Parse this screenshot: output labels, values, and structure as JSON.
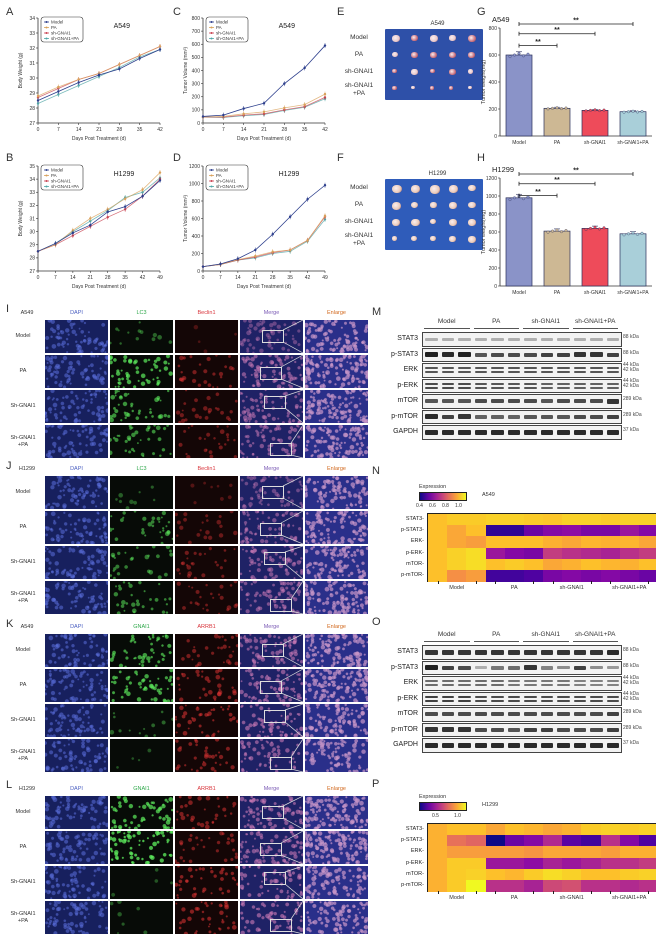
{
  "panel_labels": {
    "A": "A",
    "B": "B",
    "C": "C",
    "D": "D",
    "E": "E",
    "F": "F",
    "G": "G",
    "H": "H",
    "I": "I",
    "J": "J",
    "K": "K",
    "L": "L",
    "M": "M",
    "N": "N",
    "O": "O",
    "P": "P"
  },
  "legend": [
    "Model",
    "PA",
    "sh-GNAI1",
    "sh-GNAI1+PA"
  ],
  "series_colors": {
    "Model": "#2c3e8c",
    "PA": "#d9a15a",
    "sh-GNAI1": "#c8404f",
    "sh-GNAI1+PA": "#4fa6a6"
  },
  "chart_data": [
    {
      "id": "A",
      "type": "line",
      "title": "A549",
      "xlabel": "Days Post Treatment (d)",
      "ylabel": "Body Weight (g)",
      "x": [
        0,
        7,
        14,
        21,
        28,
        35,
        42
      ],
      "ylim": [
        27,
        34
      ],
      "yticks": [
        27,
        28,
        29,
        30,
        31,
        32,
        33,
        34
      ],
      "series": [
        {
          "name": "Model",
          "values": [
            28.5,
            29.1,
            29.7,
            30.2,
            30.6,
            31.3,
            31.9
          ]
        },
        {
          "name": "PA",
          "values": [
            28.8,
            29.4,
            29.9,
            30.3,
            30.9,
            31.5,
            32.1
          ]
        },
        {
          "name": "sh-GNAI1",
          "values": [
            28.7,
            29.3,
            29.9,
            30.3,
            30.9,
            31.5,
            32.1
          ]
        },
        {
          "name": "sh-GNAI1+PA",
          "values": [
            28.3,
            28.9,
            29.5,
            30.1,
            30.7,
            31.4,
            31.9
          ]
        }
      ]
    },
    {
      "id": "B",
      "type": "line",
      "title": "H1299",
      "xlabel": "Days Post Treatment (d)",
      "ylabel": "Body Weight (g)",
      "x": [
        0,
        7,
        14,
        21,
        28,
        35,
        42,
        49
      ],
      "ylim": [
        27,
        35
      ],
      "yticks": [
        27,
        28,
        29,
        30,
        31,
        32,
        33,
        34,
        35
      ],
      "series": [
        {
          "name": "Model",
          "values": [
            28.5,
            29.1,
            29.9,
            30.5,
            31.5,
            31.9,
            32.7,
            33.9
          ]
        },
        {
          "name": "PA",
          "values": [
            28.5,
            29.0,
            30.1,
            31.0,
            31.7,
            32.5,
            33.2,
            34.5
          ]
        },
        {
          "name": "sh-GNAI1",
          "values": [
            28.5,
            29.0,
            29.7,
            30.4,
            31.1,
            31.7,
            32.7,
            34.0
          ]
        },
        {
          "name": "sh-GNAI1+PA",
          "values": [
            28.5,
            29.1,
            30.0,
            30.8,
            31.6,
            32.6,
            33.0,
            34.1
          ]
        }
      ]
    },
    {
      "id": "C",
      "type": "line",
      "title": "A549",
      "xlabel": "Days Post Treatment (d)",
      "ylabel": "Tumor Volume (mm³)",
      "x": [
        0,
        7,
        14,
        21,
        28,
        35,
        42
      ],
      "ylim": [
        0,
        800
      ],
      "yticks": [
        0,
        100,
        200,
        300,
        400,
        500,
        600,
        700,
        800
      ],
      "series": [
        {
          "name": "Model",
          "values": [
            50,
            60,
            110,
            150,
            300,
            420,
            590
          ]
        },
        {
          "name": "PA",
          "values": [
            45,
            50,
            70,
            85,
            115,
            140,
            220
          ]
        },
        {
          "name": "sh-GNAI1",
          "values": [
            45,
            45,
            60,
            70,
            100,
            125,
            195
          ]
        },
        {
          "name": "sh-GNAI1+PA",
          "values": [
            45,
            42,
            55,
            65,
            95,
            120,
            185
          ]
        }
      ]
    },
    {
      "id": "D",
      "type": "line",
      "title": "H1299",
      "xlabel": "Days Post Treatment (d)",
      "ylabel": "Tumor Volume (mm³)",
      "x": [
        0,
        7,
        14,
        21,
        28,
        35,
        42,
        49
      ],
      "ylim": [
        0,
        1200
      ],
      "yticks": [
        0,
        200,
        400,
        600,
        800,
        1000,
        1200
      ],
      "series": [
        {
          "name": "Model",
          "values": [
            50,
            80,
            140,
            240,
            420,
            620,
            820,
            980
          ]
        },
        {
          "name": "PA",
          "values": [
            50,
            75,
            130,
            170,
            220,
            240,
            350,
            630
          ]
        },
        {
          "name": "sh-GNAI1",
          "values": [
            50,
            75,
            125,
            160,
            210,
            240,
            350,
            620
          ]
        },
        {
          "name": "sh-GNAI1+PA",
          "values": [
            50,
            75,
            125,
            150,
            200,
            225,
            340,
            590
          ]
        }
      ]
    },
    {
      "id": "G",
      "type": "bar",
      "title": "A549",
      "ylabel": "Tumor weight(mg)",
      "categories": [
        "Model",
        "PA",
        "sh-GNAI1",
        "sh-GNAI1+PA"
      ],
      "values": [
        600,
        205,
        190,
        180
      ],
      "ylim": [
        0,
        800
      ],
      "yticks": [
        0,
        200,
        400,
        600,
        800
      ],
      "colors": [
        "#8a93c8",
        "#cdb894",
        "#ee4b5a",
        "#a9cfd9"
      ],
      "significance": [
        "**",
        "**",
        "**"
      ]
    },
    {
      "id": "H",
      "type": "bar",
      "title": "H1299",
      "ylabel": "Tumor weight(mg)",
      "categories": [
        "Model",
        "PA",
        "sh-GNAI1",
        "sh-GNAI1+PA"
      ],
      "values": [
        980,
        610,
        640,
        580
      ],
      "ylim": [
        0,
        1200
      ],
      "yticks": [
        0,
        200,
        400,
        600,
        800,
        1000,
        1200
      ],
      "colors": [
        "#8a93c8",
        "#cdb894",
        "#ee4b5a",
        "#a9cfd9"
      ],
      "significance": [
        "**",
        "**",
        "**"
      ]
    },
    {
      "id": "N",
      "type": "heatmap",
      "title": "A549",
      "colorbar_label": "Expression",
      "colorbar_ticks": [
        "0.4",
        "0.6",
        "0.8",
        "1.0"
      ],
      "rows": [
        "STAT3",
        "p-STAT3",
        "ERK",
        "p-ERK",
        "mTOR",
        "p-mTOR"
      ],
      "groups": [
        "Model",
        "PA",
        "sh-GNAI1",
        "sh-GNAI1+PA"
      ],
      "values": [
        [
          0.95,
          0.97,
          0.97,
          0.98,
          0.98,
          0.97,
          0.96,
          0.98,
          0.98,
          0.97,
          0.98,
          0.98
        ],
        [
          0.95,
          0.9,
          0.95,
          0.35,
          0.35,
          0.45,
          0.5,
          0.52,
          0.48,
          0.48,
          0.55,
          0.5
        ],
        [
          0.95,
          0.9,
          0.88,
          0.95,
          0.95,
          0.95,
          0.92,
          0.9,
          0.93,
          0.92,
          0.93,
          0.9
        ],
        [
          0.95,
          0.98,
          1.0,
          0.55,
          0.5,
          0.48,
          0.65,
          0.62,
          0.6,
          0.58,
          0.62,
          0.65
        ],
        [
          0.95,
          0.98,
          1.0,
          0.95,
          0.97,
          0.95,
          0.9,
          0.92,
          0.95,
          0.93,
          0.92,
          0.95
        ],
        [
          0.95,
          0.85,
          0.88,
          0.38,
          0.38,
          0.4,
          0.48,
          0.5,
          0.48,
          0.5,
          0.48,
          0.45
        ]
      ]
    },
    {
      "id": "P",
      "type": "heatmap",
      "title": "H1299",
      "colorbar_label": "Expression",
      "colorbar_ticks": [
        "0.5",
        "1.0"
      ],
      "rows": [
        "STAT3",
        "p-STAT3",
        "ERK",
        "p-ERK",
        "mTOR",
        "p-mTOR"
      ],
      "groups": [
        "Model",
        "PA",
        "sh-GNAI1",
        "sh-GNAI1+PA"
      ],
      "values": [
        [
          0.92,
          0.95,
          0.95,
          0.9,
          0.95,
          0.93,
          0.9,
          0.92,
          0.97,
          0.98,
          0.97,
          0.98
        ],
        [
          0.92,
          0.78,
          0.75,
          0.3,
          0.45,
          0.5,
          0.6,
          0.42,
          0.38,
          0.62,
          0.5,
          0.4
        ],
        [
          0.92,
          0.88,
          0.88,
          0.88,
          0.88,
          0.86,
          0.9,
          0.9,
          0.9,
          0.88,
          0.92,
          0.92
        ],
        [
          0.92,
          0.97,
          0.97,
          0.55,
          0.55,
          0.52,
          0.58,
          0.55,
          0.58,
          0.62,
          0.62,
          0.65
        ],
        [
          0.92,
          0.97,
          0.98,
          0.95,
          0.93,
          0.97,
          1.0,
          0.98,
          0.95,
          0.95,
          0.97,
          0.98
        ],
        [
          0.92,
          0.97,
          1.05,
          0.62,
          0.62,
          0.58,
          0.68,
          0.7,
          0.62,
          0.62,
          0.6,
          0.62
        ]
      ]
    }
  ],
  "photos": {
    "E": {
      "title": "A549",
      "rows": [
        "Model",
        "PA",
        "sh-GNAI1",
        "sh-GNAI1\n+PA"
      ]
    },
    "F": {
      "title": "H1299",
      "rows": [
        "Model",
        "PA",
        "sh-GNAI1",
        "sh-GNAI1\n+PA"
      ]
    }
  },
  "if_panels": [
    {
      "id": "I",
      "cell": "A549",
      "headers": [
        "DAPI",
        "LC3",
        "Beclin1",
        "Merge",
        "Enlarge"
      ],
      "rows": [
        "Model",
        "PA",
        "Sh-GNAI1",
        "Sh-GNAI1\n+PA"
      ],
      "green": [
        0.15,
        0.6,
        0.45,
        0.4
      ],
      "red": [
        0.05,
        0.35,
        0.3,
        0.3
      ]
    },
    {
      "id": "J",
      "cell": "H1299",
      "headers": [
        "DAPI",
        "LC3",
        "Beclin1",
        "Merge",
        "Enlarge"
      ],
      "rows": [
        "Model",
        "PA",
        "Sh-GNAI1",
        "Sh-GNAI1\n+PA"
      ],
      "green": [
        0.1,
        0.35,
        0.3,
        0.35
      ],
      "red": [
        0.1,
        0.25,
        0.3,
        0.3
      ]
    },
    {
      "id": "K",
      "cell": "A549",
      "headers": [
        "DAPI",
        "GNAI1",
        "ARRB1",
        "Merge",
        "Enlarge"
      ],
      "rows": [
        "Model",
        "PA",
        "Sh-GNAI1",
        "Sh-GNAI1\n+PA"
      ],
      "green": [
        0.5,
        0.55,
        0.15,
        0.05
      ],
      "red": [
        0.35,
        0.4,
        0.45,
        0.4
      ]
    },
    {
      "id": "L",
      "cell": "H1299",
      "headers": [
        "DAPI",
        "GNAI1",
        "ARRB1",
        "Merge",
        "Enlarge"
      ],
      "rows": [
        "Model",
        "PA",
        "Sh-GNAI1",
        "Sh-GNAI1\n+PA"
      ],
      "green": [
        0.6,
        0.7,
        0.05,
        0.08
      ],
      "red": [
        0.4,
        0.35,
        0.45,
        0.45
      ]
    }
  ],
  "header_colors": {
    "DAPI": "#4a5fc1",
    "LC3": "#2ea84a",
    "GNAI1": "#2ea84a",
    "Beclin1": "#d8333a",
    "ARRB1": "#d8333a",
    "Merge": "#7a5ab5",
    "Enlarge": "#d2691e"
  },
  "western_blots": [
    {
      "id": "M",
      "groups": [
        "Model",
        "PA",
        "sh-GNAI1",
        "sh-GNAI1+PA"
      ],
      "rows": [
        {
          "name": "STAT3",
          "kda": "88 kDa",
          "double": false,
          "int": [
            0.3,
            0.3,
            0.3,
            0.3,
            0.3,
            0.3,
            0.3,
            0.3,
            0.3,
            0.3,
            0.3,
            0.3
          ]
        },
        {
          "name": "p-STAT3",
          "kda": "88 kDa",
          "double": false,
          "int": [
            0.95,
            0.9,
            0.95,
            0.7,
            0.75,
            0.75,
            0.75,
            0.8,
            0.8,
            0.85,
            0.85,
            0.8
          ]
        },
        {
          "name": "ERK",
          "kda": "44 kDa\n42 kDa",
          "double": true,
          "int": [
            0.7,
            0.7,
            0.7,
            0.7,
            0.7,
            0.7,
            0.7,
            0.7,
            0.7,
            0.7,
            0.7,
            0.7
          ]
        },
        {
          "name": "p-ERK",
          "kda": "44 kDa\n42 kDa",
          "double": true,
          "int": [
            0.75,
            0.75,
            0.75,
            0.7,
            0.7,
            0.7,
            0.7,
            0.65,
            0.65,
            0.65,
            0.65,
            0.65
          ]
        },
        {
          "name": "mTOR",
          "kda": "289 kDa",
          "double": false,
          "int": [
            0.7,
            0.7,
            0.7,
            0.75,
            0.75,
            0.75,
            0.75,
            0.7,
            0.75,
            0.75,
            0.75,
            0.85
          ]
        },
        {
          "name": "p-mTOR",
          "kda": "289 kDa",
          "double": false,
          "int": [
            0.9,
            0.8,
            0.85,
            0.65,
            0.65,
            0.65,
            0.7,
            0.7,
            0.7,
            0.75,
            0.75,
            0.8
          ]
        },
        {
          "name": "GAPDH",
          "kda": "37 kDa",
          "double": false,
          "int": [
            0.9,
            0.9,
            0.9,
            0.9,
            0.9,
            0.9,
            0.9,
            0.9,
            0.9,
            0.9,
            0.9,
            0.9
          ]
        }
      ]
    },
    {
      "id": "O",
      "groups": [
        "Model",
        "PA",
        "sh-GNAI1",
        "sh-GNAI1+PA"
      ],
      "rows": [
        {
          "name": "STAT3",
          "kda": "88 kDa",
          "double": false,
          "int": [
            0.85,
            0.85,
            0.85,
            0.85,
            0.85,
            0.85,
            0.85,
            0.85,
            0.85,
            0.85,
            0.85,
            0.9
          ]
        },
        {
          "name": "p-STAT3",
          "kda": "88 kDa",
          "double": false,
          "int": [
            0.95,
            0.8,
            0.75,
            0.3,
            0.55,
            0.6,
            0.85,
            0.5,
            0.45,
            0.8,
            0.45,
            0.4
          ]
        },
        {
          "name": "ERK",
          "kda": "44 kDa\n42 kDa",
          "double": true,
          "int": [
            0.6,
            0.6,
            0.6,
            0.6,
            0.6,
            0.55,
            0.55,
            0.55,
            0.55,
            0.5,
            0.5,
            0.5
          ]
        },
        {
          "name": "p-ERK",
          "kda": "44 kDa\n42 kDa",
          "double": true,
          "int": [
            0.8,
            0.8,
            0.8,
            0.75,
            0.75,
            0.75,
            0.75,
            0.75,
            0.75,
            0.75,
            0.75,
            0.75
          ]
        },
        {
          "name": "mTOR",
          "kda": "289 kDa",
          "double": false,
          "int": [
            0.75,
            0.75,
            0.75,
            0.75,
            0.75,
            0.75,
            0.75,
            0.75,
            0.75,
            0.75,
            0.75,
            0.8
          ]
        },
        {
          "name": "p-mTOR",
          "kda": "289 kDa",
          "double": false,
          "int": [
            0.85,
            0.85,
            0.85,
            0.75,
            0.75,
            0.7,
            0.8,
            0.8,
            0.75,
            0.75,
            0.75,
            0.8
          ]
        },
        {
          "name": "GAPDH",
          "kda": "37 kDa",
          "double": false,
          "int": [
            0.9,
            0.9,
            0.9,
            0.9,
            0.9,
            0.9,
            0.9,
            0.9,
            0.9,
            0.9,
            0.9,
            0.9
          ]
        }
      ]
    }
  ]
}
